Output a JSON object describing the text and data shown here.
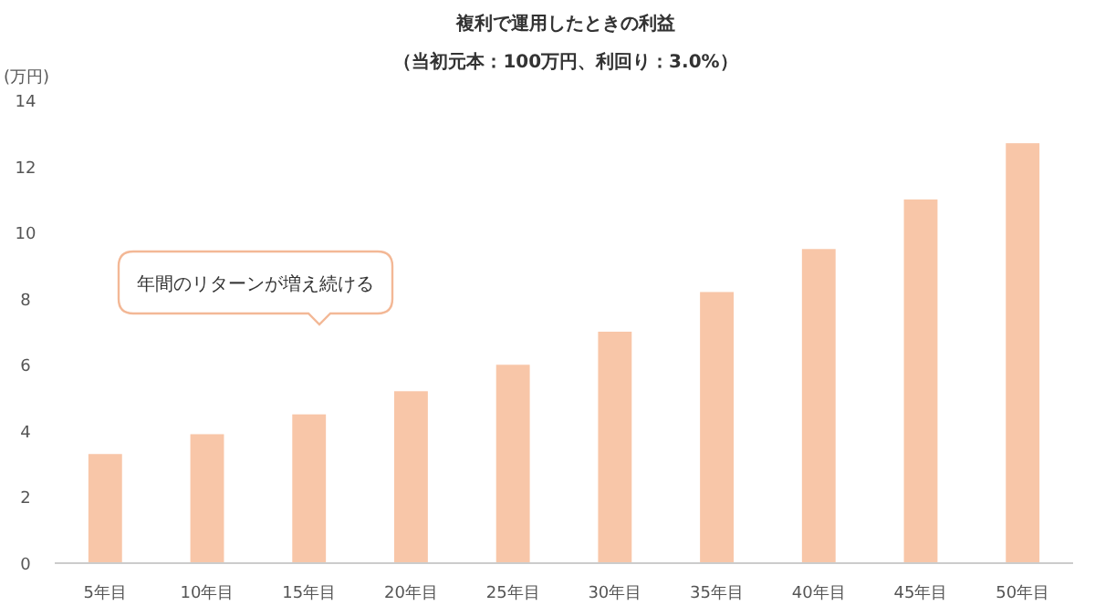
{
  "chart_data": {
    "type": "bar",
    "title": "複利で運用したときの利益",
    "subtitle": "（当初元本：100万円、利回り：3.0%）",
    "ylabel": "(万円)",
    "categories": [
      "5年目",
      "10年目",
      "15年目",
      "20年目",
      "25年目",
      "30年目",
      "35年目",
      "40年目",
      "45年目",
      "50年目"
    ],
    "values": [
      3.3,
      3.9,
      4.5,
      5.2,
      6.0,
      7.0,
      8.2,
      9.5,
      11.0,
      12.7
    ],
    "color": "#f8c6a8",
    "ylim": [
      0,
      14
    ],
    "yticks": [
      0,
      2,
      4,
      6,
      8,
      10,
      12,
      14
    ],
    "grid": false,
    "annotations": [
      "年間のリターンが増え続ける"
    ]
  }
}
